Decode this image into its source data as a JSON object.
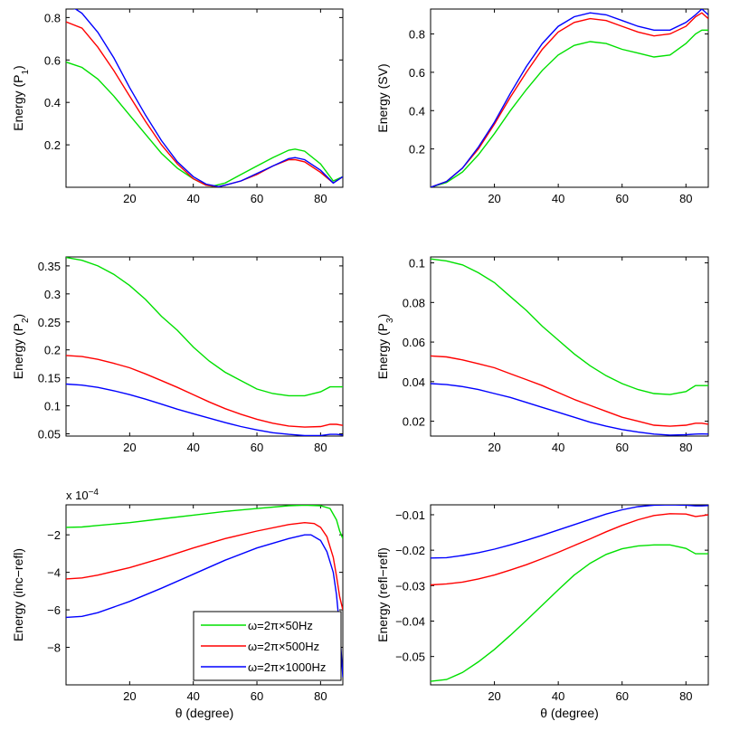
{
  "chart_data": [
    {
      "type": "line",
      "ylabel": "Energy (P",
      "ylabel_sub": "1",
      "ylabel_end": ")",
      "xlabel": "",
      "exponent": "",
      "xlim": [
        0,
        87
      ],
      "ylim": [
        0,
        0.84
      ],
      "xticks": [
        20,
        40,
        60,
        80
      ],
      "yticks": [
        0.2,
        0.4,
        0.6,
        0.8
      ],
      "ytick_labels": [
        "0.2",
        "0.4",
        "0.6",
        "0.8"
      ],
      "series": [
        {
          "color": "#00e000",
          "x": [
            0,
            5,
            10,
            15,
            20,
            25,
            30,
            35,
            40,
            44,
            46,
            50,
            55,
            60,
            65,
            70,
            72,
            75,
            80,
            84,
            87
          ],
          "y": [
            0.59,
            0.565,
            0.51,
            0.43,
            0.34,
            0.25,
            0.16,
            0.09,
            0.04,
            0.01,
            0.005,
            0.02,
            0.06,
            0.1,
            0.14,
            0.175,
            0.18,
            0.17,
            0.11,
            0.03,
            0.05
          ]
        },
        {
          "color": "#ff0000",
          "x": [
            0,
            5,
            10,
            15,
            20,
            25,
            30,
            35,
            40,
            44,
            48,
            50,
            55,
            60,
            65,
            70,
            72,
            75,
            80,
            84,
            87
          ],
          "y": [
            0.78,
            0.75,
            0.66,
            0.55,
            0.43,
            0.31,
            0.2,
            0.11,
            0.04,
            0.01,
            0.003,
            0.01,
            0.03,
            0.06,
            0.1,
            0.13,
            0.13,
            0.12,
            0.07,
            0.02,
            0.05
          ]
        },
        {
          "color": "#0000ff",
          "x": [
            0,
            3,
            5,
            10,
            15,
            20,
            25,
            30,
            35,
            40,
            44,
            48,
            50,
            55,
            60,
            65,
            70,
            72,
            75,
            80,
            84,
            87
          ],
          "y": [
            0.85,
            0.84,
            0.82,
            0.73,
            0.61,
            0.47,
            0.34,
            0.22,
            0.12,
            0.05,
            0.015,
            0.003,
            0.01,
            0.03,
            0.065,
            0.1,
            0.135,
            0.14,
            0.13,
            0.08,
            0.02,
            0.05
          ]
        }
      ]
    },
    {
      "type": "line",
      "ylabel": "Energy (SV)",
      "ylabel_sub": "",
      "ylabel_end": "",
      "xlabel": "",
      "exponent": "",
      "xlim": [
        0,
        87
      ],
      "ylim": [
        0,
        0.93
      ],
      "xticks": [
        20,
        40,
        60,
        80
      ],
      "yticks": [
        0.2,
        0.4,
        0.6,
        0.8
      ],
      "ytick_labels": [
        "0.2",
        "0.4",
        "0.6",
        "0.8"
      ],
      "series": [
        {
          "color": "#00e000",
          "x": [
            0,
            5,
            10,
            15,
            20,
            25,
            30,
            35,
            40,
            45,
            50,
            55,
            60,
            65,
            70,
            75,
            80,
            83,
            85,
            87
          ],
          "y": [
            0,
            0.025,
            0.08,
            0.17,
            0.28,
            0.4,
            0.51,
            0.61,
            0.69,
            0.74,
            0.76,
            0.75,
            0.72,
            0.7,
            0.68,
            0.69,
            0.75,
            0.8,
            0.82,
            0.82
          ]
        },
        {
          "color": "#ff0000",
          "x": [
            0,
            5,
            10,
            15,
            20,
            25,
            30,
            35,
            40,
            45,
            50,
            55,
            60,
            65,
            70,
            75,
            80,
            83,
            85,
            87
          ],
          "y": [
            0,
            0.03,
            0.1,
            0.2,
            0.33,
            0.47,
            0.6,
            0.72,
            0.81,
            0.86,
            0.88,
            0.87,
            0.84,
            0.81,
            0.79,
            0.8,
            0.84,
            0.89,
            0.91,
            0.88
          ]
        },
        {
          "color": "#0000ff",
          "x": [
            0,
            5,
            10,
            15,
            20,
            25,
            30,
            35,
            40,
            45,
            50,
            55,
            60,
            65,
            70,
            75,
            80,
            83,
            85,
            87
          ],
          "y": [
            0,
            0.03,
            0.1,
            0.21,
            0.34,
            0.49,
            0.63,
            0.75,
            0.84,
            0.89,
            0.91,
            0.9,
            0.87,
            0.84,
            0.82,
            0.82,
            0.86,
            0.9,
            0.93,
            0.9
          ]
        }
      ]
    },
    {
      "type": "line",
      "ylabel": "Energy (P",
      "ylabel_sub": "2",
      "ylabel_end": ")",
      "xlabel": "",
      "exponent": "",
      "xlim": [
        0,
        87
      ],
      "ylim": [
        0.046,
        0.366
      ],
      "xticks": [
        20,
        40,
        60,
        80
      ],
      "yticks": [
        0.05,
        0.1,
        0.15,
        0.2,
        0.25,
        0.3,
        0.35
      ],
      "ytick_labels": [
        "0.05",
        "0.1",
        "0.15",
        "0.2",
        "0.25",
        "0.3",
        "0.35"
      ],
      "series": [
        {
          "color": "#00e000",
          "x": [
            0,
            5,
            10,
            15,
            20,
            25,
            30,
            35,
            40,
            45,
            50,
            55,
            60,
            65,
            70,
            75,
            80,
            83,
            85,
            87
          ],
          "y": [
            0.365,
            0.36,
            0.35,
            0.335,
            0.315,
            0.29,
            0.26,
            0.235,
            0.205,
            0.18,
            0.16,
            0.145,
            0.13,
            0.122,
            0.118,
            0.118,
            0.125,
            0.134,
            0.134,
            0.134
          ]
        },
        {
          "color": "#ff0000",
          "x": [
            0,
            5,
            10,
            15,
            20,
            25,
            30,
            35,
            40,
            45,
            50,
            55,
            60,
            65,
            70,
            75,
            80,
            83,
            85,
            87
          ],
          "y": [
            0.19,
            0.188,
            0.183,
            0.176,
            0.168,
            0.157,
            0.145,
            0.133,
            0.12,
            0.107,
            0.095,
            0.085,
            0.076,
            0.069,
            0.064,
            0.062,
            0.063,
            0.067,
            0.067,
            0.065
          ]
        },
        {
          "color": "#0000ff",
          "x": [
            0,
            5,
            10,
            15,
            20,
            25,
            30,
            35,
            40,
            45,
            50,
            55,
            60,
            65,
            70,
            75,
            80,
            83,
            85,
            87
          ],
          "y": [
            0.139,
            0.137,
            0.133,
            0.127,
            0.12,
            0.112,
            0.103,
            0.094,
            0.086,
            0.078,
            0.07,
            0.063,
            0.057,
            0.052,
            0.049,
            0.047,
            0.047,
            0.049,
            0.049,
            0.048
          ]
        }
      ]
    },
    {
      "type": "line",
      "ylabel": "Energy (P",
      "ylabel_sub": "3",
      "ylabel_end": ")",
      "xlabel": "",
      "exponent": "",
      "xlim": [
        0,
        87
      ],
      "ylim": [
        0.0125,
        0.103
      ],
      "xticks": [
        20,
        40,
        60,
        80
      ],
      "yticks": [
        0.02,
        0.04,
        0.06,
        0.08,
        0.1
      ],
      "ytick_labels": [
        "0.02",
        "0.04",
        "0.06",
        "0.08",
        "0.1"
      ],
      "series": [
        {
          "color": "#00e000",
          "x": [
            0,
            5,
            10,
            15,
            20,
            25,
            30,
            35,
            40,
            45,
            50,
            55,
            60,
            65,
            70,
            75,
            80,
            83,
            85,
            87
          ],
          "y": [
            0.102,
            0.101,
            0.099,
            0.095,
            0.09,
            0.083,
            0.076,
            0.068,
            0.061,
            0.054,
            0.048,
            0.043,
            0.039,
            0.036,
            0.034,
            0.0335,
            0.035,
            0.038,
            0.038,
            0.038
          ]
        },
        {
          "color": "#ff0000",
          "x": [
            0,
            5,
            10,
            15,
            20,
            25,
            30,
            35,
            40,
            45,
            50,
            55,
            60,
            65,
            70,
            75,
            80,
            83,
            85,
            87
          ],
          "y": [
            0.053,
            0.0525,
            0.051,
            0.049,
            0.047,
            0.044,
            0.041,
            0.038,
            0.0345,
            0.031,
            0.028,
            0.025,
            0.022,
            0.02,
            0.018,
            0.0175,
            0.018,
            0.019,
            0.019,
            0.0185
          ]
        },
        {
          "color": "#0000ff",
          "x": [
            0,
            5,
            10,
            15,
            20,
            25,
            30,
            35,
            40,
            45,
            50,
            55,
            60,
            65,
            70,
            75,
            80,
            83,
            85,
            87
          ],
          "y": [
            0.039,
            0.0385,
            0.0375,
            0.036,
            0.034,
            0.032,
            0.0295,
            0.027,
            0.0245,
            0.022,
            0.0195,
            0.0175,
            0.0158,
            0.0145,
            0.0135,
            0.013,
            0.0132,
            0.0135,
            0.0136,
            0.0135
          ]
        }
      ]
    },
    {
      "type": "line",
      "ylabel": "Energy (inc−refl)",
      "ylabel_sub": "",
      "ylabel_end": "",
      "xlabel": "θ (degree)",
      "exponent": "x 10",
      "exponent_power": "−4",
      "xlim": [
        0,
        87
      ],
      "ylim": [
        -10,
        -0.4
      ],
      "xticks": [
        20,
        40,
        60,
        80
      ],
      "yticks": [
        -8,
        -6,
        -4,
        -2
      ],
      "ytick_labels": [
        "−8",
        "−6",
        "−4",
        "−2"
      ],
      "series": [
        {
          "color": "#00e000",
          "x": [
            0,
            5,
            10,
            20,
            30,
            40,
            50,
            60,
            70,
            75,
            80,
            83,
            85,
            86,
            87
          ],
          "y": [
            -1.6,
            -1.58,
            -1.5,
            -1.35,
            -1.15,
            -0.95,
            -0.75,
            -0.6,
            -0.45,
            -0.42,
            -0.45,
            -0.6,
            -1.2,
            -1.8,
            -2.2
          ]
        },
        {
          "color": "#ff0000",
          "x": [
            0,
            5,
            10,
            20,
            30,
            40,
            50,
            60,
            70,
            75,
            78,
            80,
            82,
            84,
            85,
            86,
            87
          ],
          "y": [
            -4.35,
            -4.3,
            -4.15,
            -3.75,
            -3.25,
            -2.7,
            -2.2,
            -1.8,
            -1.45,
            -1.35,
            -1.4,
            -1.6,
            -2.1,
            -3.2,
            -4.2,
            -5.3,
            -6.0
          ]
        },
        {
          "color": "#0000ff",
          "x": [
            0,
            5,
            10,
            20,
            30,
            40,
            50,
            60,
            70,
            75,
            77,
            80,
            82,
            84,
            85,
            86,
            87
          ],
          "y": [
            -6.4,
            -6.35,
            -6.15,
            -5.55,
            -4.85,
            -4.1,
            -3.35,
            -2.7,
            -2.2,
            -2.0,
            -2.0,
            -2.3,
            -2.9,
            -4.0,
            -5.2,
            -7.0,
            -9.6
          ]
        }
      ]
    },
    {
      "type": "line",
      "ylabel": "Energy (refl−refl)",
      "ylabel_sub": "",
      "ylabel_end": "",
      "xlabel": "θ (degree)",
      "exponent": "",
      "xlim": [
        0,
        87
      ],
      "ylim": [
        -0.058,
        -0.0072
      ],
      "xticks": [
        20,
        40,
        60,
        80
      ],
      "yticks": [
        -0.05,
        -0.04,
        -0.03,
        -0.02,
        -0.01
      ],
      "ytick_labels": [
        "−0.05",
        "−0.04",
        "−0.03",
        "−0.02",
        "−0.01"
      ],
      "series": [
        {
          "color": "#00e000",
          "x": [
            0,
            5,
            10,
            15,
            20,
            25,
            30,
            35,
            40,
            45,
            50,
            55,
            60,
            65,
            70,
            75,
            80,
            83,
            85,
            87
          ],
          "y": [
            -0.057,
            -0.0565,
            -0.0545,
            -0.0515,
            -0.048,
            -0.044,
            -0.0398,
            -0.0355,
            -0.0312,
            -0.027,
            -0.0237,
            -0.0212,
            -0.0196,
            -0.0188,
            -0.0185,
            -0.0185,
            -0.0195,
            -0.021,
            -0.021,
            -0.021
          ]
        },
        {
          "color": "#ff0000",
          "x": [
            0,
            5,
            10,
            15,
            20,
            25,
            30,
            35,
            40,
            45,
            50,
            55,
            60,
            65,
            70,
            75,
            80,
            83,
            85,
            87
          ],
          "y": [
            -0.0298,
            -0.0295,
            -0.029,
            -0.0281,
            -0.027,
            -0.0256,
            -0.0241,
            -0.0224,
            -0.0206,
            -0.0187,
            -0.0168,
            -0.0148,
            -0.013,
            -0.0114,
            -0.0102,
            -0.0097,
            -0.0098,
            -0.0105,
            -0.0103,
            -0.01
          ]
        },
        {
          "color": "#0000ff",
          "x": [
            0,
            5,
            10,
            15,
            20,
            25,
            30,
            35,
            40,
            45,
            50,
            55,
            60,
            65,
            70,
            75,
            80,
            83,
            85,
            87
          ],
          "y": [
            -0.0222,
            -0.0221,
            -0.0215,
            -0.0207,
            -0.0197,
            -0.0185,
            -0.0172,
            -0.0158,
            -0.0143,
            -0.0128,
            -0.0113,
            -0.0098,
            -0.0086,
            -0.0077,
            -0.0073,
            -0.0072,
            -0.0073,
            -0.0075,
            -0.0075,
            -0.0074
          ]
        }
      ]
    }
  ],
  "legend": {
    "placement": "bottom-right of lower-left panel",
    "entries": [
      {
        "label": "ω=2π×50Hz",
        "color": "#00e000"
      },
      {
        "label": "ω=2π×500Hz",
        "color": "#ff0000"
      },
      {
        "label": "ω=2π×1000Hz",
        "color": "#0000ff"
      }
    ]
  }
}
